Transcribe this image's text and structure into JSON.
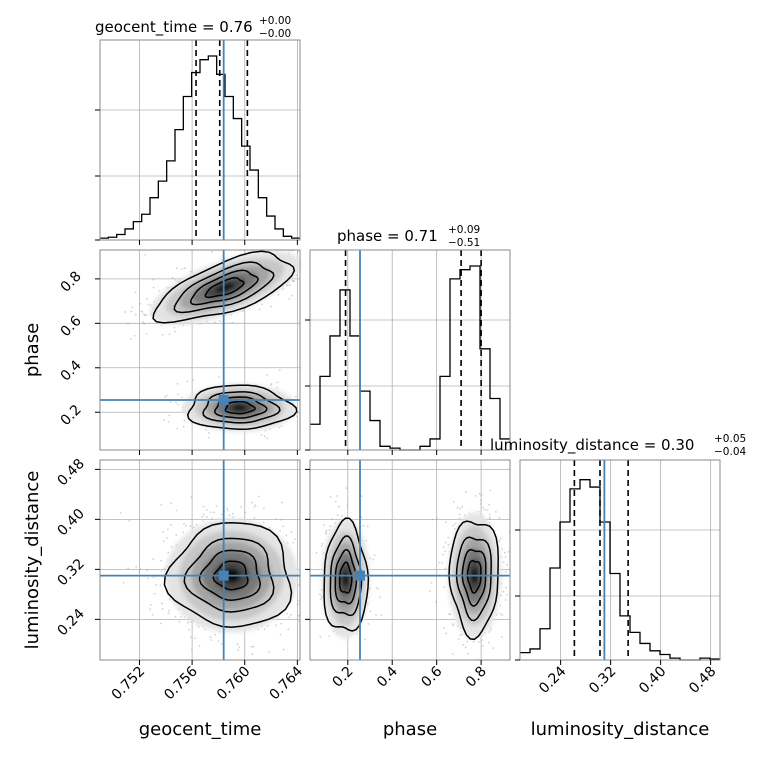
{
  "chart_data": {
    "type": "corner",
    "params": [
      "geocent_time",
      "phase",
      "luminosity_distance"
    ],
    "truths": {
      "geocent_time": 0.7584,
      "phase": 0.255,
      "luminosity_distance": 0.31
    },
    "titles": {
      "geocent_time": {
        "main": "geocent_time = 0.76",
        "sup": "+0.00",
        "sub": "−0.00"
      },
      "phase": {
        "main": "phase = 0.71",
        "sup": "+0.09",
        "sub": "−0.51"
      },
      "luminosity_distance": {
        "main": "luminosity_distance = 0.30",
        "sup": "+0.05",
        "sub": "−0.04"
      }
    },
    "axis_labels": {
      "geocent_time": "geocent_time",
      "phase": "phase",
      "luminosity_distance": "luminosity_distance"
    },
    "ranges": {
      "geocent_time": [
        0.749,
        0.7642
      ],
      "phase": [
        0.03,
        0.93
      ],
      "luminosity_distance": [
        0.175,
        0.495
      ]
    },
    "ticks": {
      "geocent_time": {
        "values": [
          0.752,
          0.756,
          0.76,
          0.764
        ],
        "labels": [
          "0.752",
          "0.756",
          "0.760",
          "0.764"
        ]
      },
      "phase": {
        "values": [
          0.2,
          0.4,
          0.6,
          0.8
        ],
        "labels": [
          "0.2",
          "0.4",
          "0.6",
          "0.8"
        ]
      },
      "luminosity_distance": {
        "values": [
          0.24,
          0.32,
          0.4,
          0.48
        ],
        "labels": [
          "0.24",
          "0.32",
          "0.40",
          "0.48"
        ]
      }
    },
    "quantiles": {
      "geocent_time": [
        0.7563,
        0.7581,
        0.7602
      ],
      "phase": [
        0.19,
        0.71,
        0.8
      ],
      "luminosity_distance": [
        0.262,
        0.303,
        0.348
      ]
    },
    "histograms": {
      "geocent_time": [
        0.01,
        0.015,
        0.03,
        0.06,
        0.1,
        0.14,
        0.23,
        0.32,
        0.43,
        0.6,
        0.78,
        0.91,
        0.98,
        1.0,
        0.9,
        0.78,
        0.66,
        0.51,
        0.38,
        0.23,
        0.13,
        0.06,
        0.02,
        0.01
      ],
      "phase": [
        0.14,
        0.4,
        0.62,
        0.87,
        0.62,
        0.32,
        0.16,
        0.02,
        0.01,
        0.0,
        0.0,
        0.02,
        0.06,
        0.4,
        0.93,
        0.98,
        1.0,
        0.55,
        0.28,
        0.06
      ],
      "luminosity_distance": [
        0.04,
        0.06,
        0.17,
        0.5,
        0.75,
        0.93,
        0.98,
        0.94,
        0.75,
        0.47,
        0.24,
        0.15,
        0.09,
        0.05,
        0.03,
        0.01,
        0.0,
        0.0,
        0.01,
        0.005
      ]
    },
    "grid": true,
    "truth_color": "#4682b4"
  }
}
